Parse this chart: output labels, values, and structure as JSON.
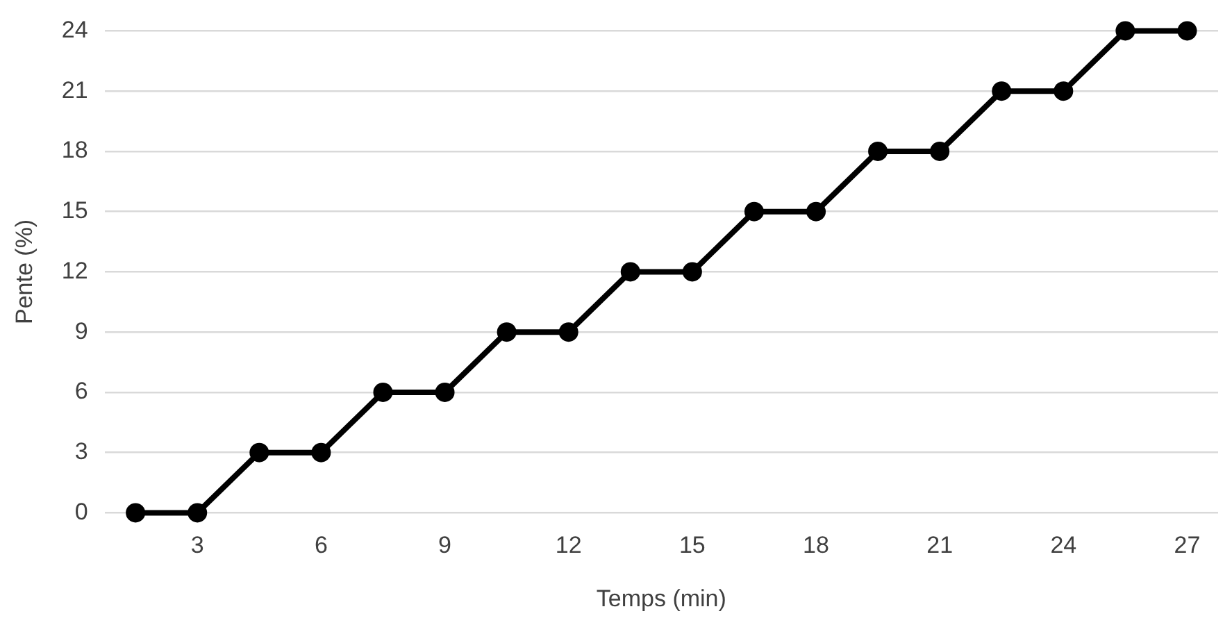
{
  "chart_data": {
    "type": "line",
    "xlabel": "Temps (min)",
    "ylabel": "Pente (%)",
    "categories": [
      null,
      "3",
      null,
      "6",
      null,
      "9",
      null,
      "12",
      null,
      "15",
      null,
      "18",
      null,
      "21",
      null,
      "24",
      null,
      "27"
    ],
    "series": [
      {
        "color": "#000000",
        "values": [
          0,
          0,
          3,
          3,
          6,
          6,
          9,
          9,
          12,
          12,
          15,
          15,
          18,
          18,
          21,
          21,
          24,
          24
        ]
      }
    ],
    "ylim": [
      0,
      24
    ],
    "yticks": [
      0,
      3,
      6,
      9,
      12,
      15,
      18,
      21,
      24
    ],
    "grid": "y",
    "legend": false,
    "marker": "circle",
    "line_style": "solid"
  }
}
